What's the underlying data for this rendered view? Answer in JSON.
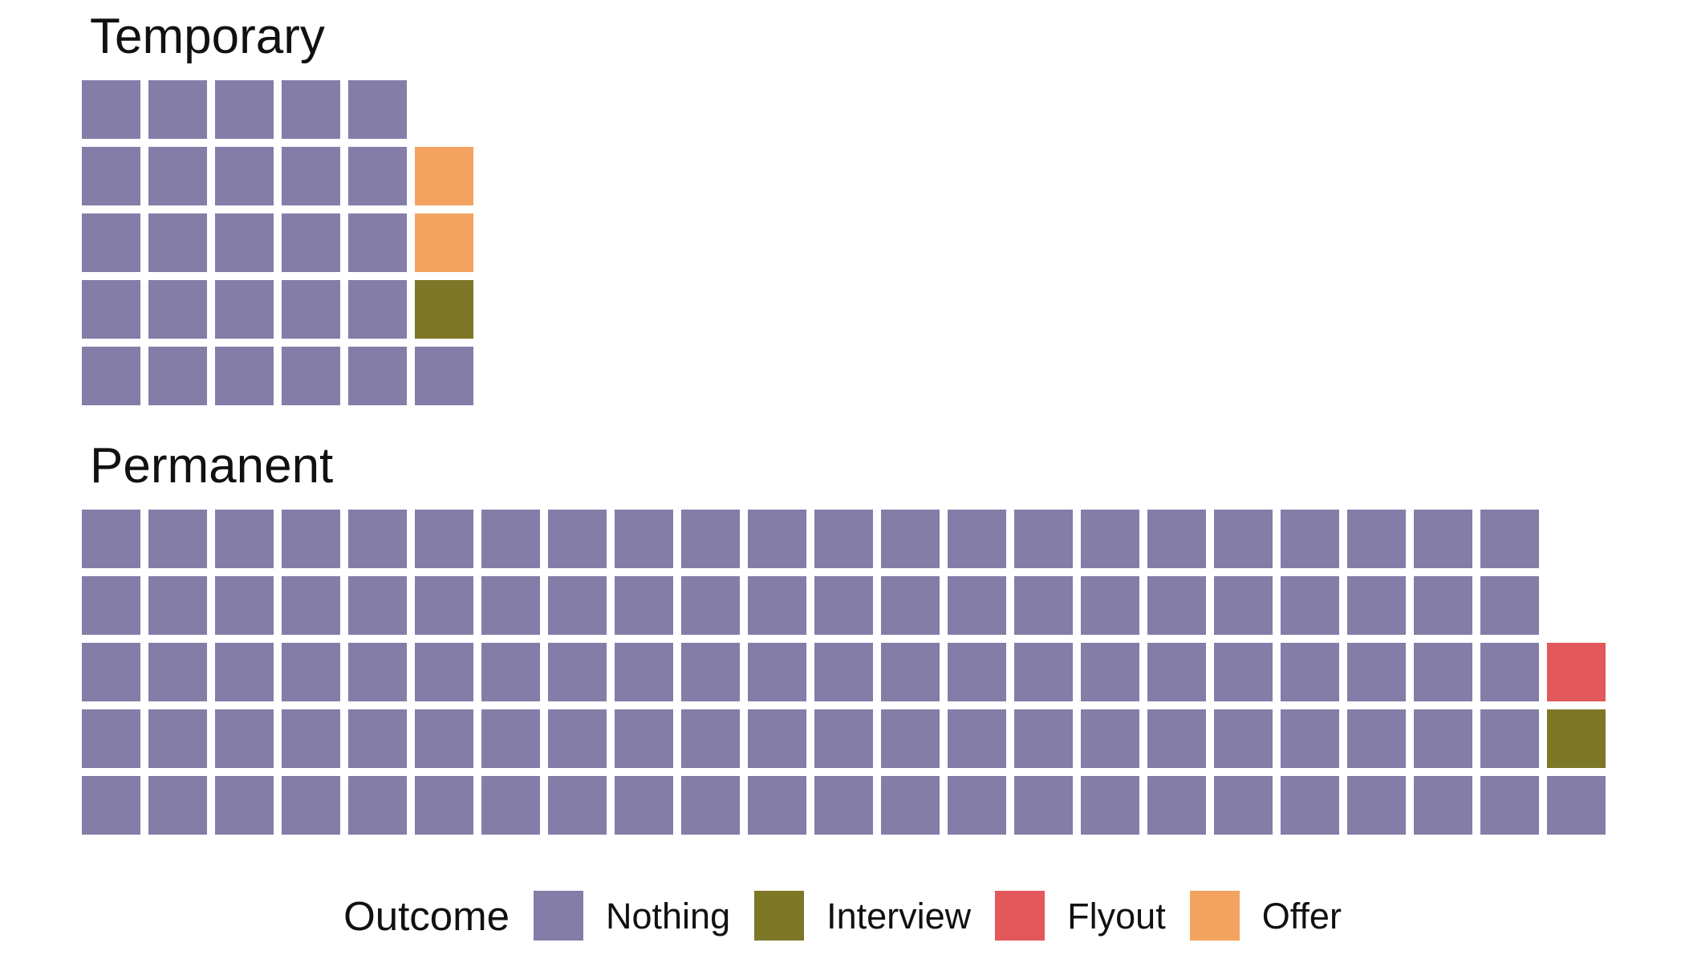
{
  "page": {
    "background": "#ffffff"
  },
  "chart_data": {
    "type": "waffle",
    "facets": [
      {
        "title": "Temporary",
        "rows": 5,
        "columns": 6,
        "fill_order": "column-major, bottom-to-top, left-to-right",
        "counts": [
          {
            "category": "Nothing",
            "value": 26
          },
          {
            "category": "Interview",
            "value": 1
          },
          {
            "category": "Flyout",
            "value": 0
          },
          {
            "category": "Offer",
            "value": 2
          }
        ],
        "total": 29
      },
      {
        "title": "Permanent",
        "rows": 5,
        "columns": 23,
        "fill_order": "column-major, bottom-to-top, left-to-right",
        "counts": [
          {
            "category": "Nothing",
            "value": 111
          },
          {
            "category": "Interview",
            "value": 1
          },
          {
            "category": "Flyout",
            "value": 1
          },
          {
            "category": "Offer",
            "value": 0
          }
        ],
        "total": 113
      }
    ],
    "legend": {
      "title": "Outcome",
      "position": "bottom",
      "entries": [
        "Nothing",
        "Interview",
        "Flyout",
        "Offer"
      ]
    },
    "colors": {
      "Nothing": "#837DA8",
      "Interview": "#7D7827",
      "Flyout": "#E2585B",
      "Offer": "#F3A35F"
    }
  }
}
